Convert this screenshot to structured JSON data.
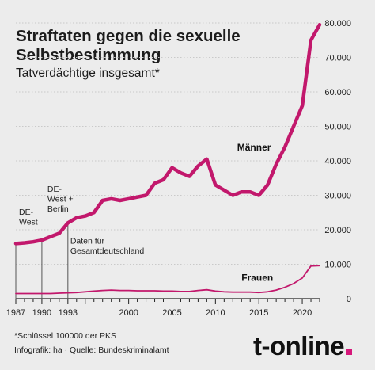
{
  "title": "Straftaten gegen die sexuelle Selbstbestimmung",
  "subtitle": "Tatverdächtige insgesamt*",
  "footnote": "*Schlüssel 100000 der PKS",
  "credits": "Infografik: ha · Quelle: Bundeskriminalamt",
  "logo": {
    "text": "t-online",
    "dot_color": "#d6177a"
  },
  "chart_data": {
    "type": "line",
    "x_ticks": [
      1987,
      1990,
      1993,
      2000,
      2005,
      2010,
      2015,
      2020
    ],
    "x_tick_labels": [
      "1987",
      "1990",
      "1993",
      "2000",
      "2005",
      "2010",
      "2015",
      "2020"
    ],
    "xlim": [
      1987,
      2022
    ],
    "y_ticks": [
      0,
      10000,
      20000,
      30000,
      40000,
      50000,
      60000,
      70000,
      80000
    ],
    "y_tick_labels": [
      "0",
      "10.000",
      "20.000",
      "30.000",
      "40.000",
      "50.000",
      "60.000",
      "70.000",
      "80.000"
    ],
    "ylim": [
      0,
      80000
    ],
    "grid": true,
    "series": [
      {
        "name": "Männer",
        "color": "#c2186c",
        "x": [
          1987,
          1988,
          1989,
          1990,
          1991,
          1992,
          1993,
          1994,
          1995,
          1996,
          1997,
          1998,
          1999,
          2000,
          2001,
          2002,
          2003,
          2004,
          2005,
          2006,
          2007,
          2008,
          2009,
          2010,
          2011,
          2012,
          2013,
          2014,
          2015,
          2016,
          2017,
          2018,
          2019,
          2020,
          2021,
          2022
        ],
        "values": [
          16000,
          16200,
          16500,
          17000,
          18000,
          19000,
          22000,
          23500,
          24000,
          25000,
          28500,
          29000,
          28500,
          29000,
          29500,
          30000,
          33500,
          34500,
          38000,
          36500,
          35500,
          38500,
          40500,
          33000,
          31500,
          30000,
          31000,
          31000,
          30000,
          33000,
          39000,
          44000,
          50000,
          56000,
          75000,
          79500
        ]
      },
      {
        "name": "Frauen",
        "color": "#c2186c",
        "x": [
          1987,
          1988,
          1989,
          1990,
          1991,
          1992,
          1993,
          1994,
          1995,
          1996,
          1997,
          1998,
          1999,
          2000,
          2001,
          2002,
          2003,
          2004,
          2005,
          2006,
          2007,
          2008,
          2009,
          2010,
          2011,
          2012,
          2013,
          2014,
          2015,
          2016,
          2017,
          2018,
          2019,
          2020,
          2021,
          2022
        ],
        "values": [
          1500,
          1500,
          1500,
          1500,
          1500,
          1600,
          1700,
          1800,
          2000,
          2200,
          2400,
          2500,
          2400,
          2400,
          2300,
          2300,
          2300,
          2200,
          2200,
          2100,
          2100,
          2400,
          2600,
          2200,
          2000,
          1900,
          1900,
          1900,
          1800,
          2000,
          2500,
          3300,
          4400,
          6000,
          9500,
          9600
        ]
      }
    ],
    "annotations": [
      {
        "text_lines": [
          "DE-",
          "West"
        ],
        "x": 1987,
        "y": 16000,
        "text_pos": "above"
      },
      {
        "text_lines": [
          "DE-",
          "West +",
          "Berlin"
        ],
        "x": 1990,
        "y": 17000,
        "text_pos": "above"
      },
      {
        "text_lines": [
          "Daten für",
          "Gesamtdeutschland"
        ],
        "x": 1993,
        "y": 22000,
        "text_pos": "below"
      }
    ],
    "series_labels": [
      {
        "text": "Männer",
        "x": 2012.5,
        "y": 43000
      },
      {
        "text": "Frauen",
        "x": 2013,
        "y": 5200
      }
    ]
  }
}
